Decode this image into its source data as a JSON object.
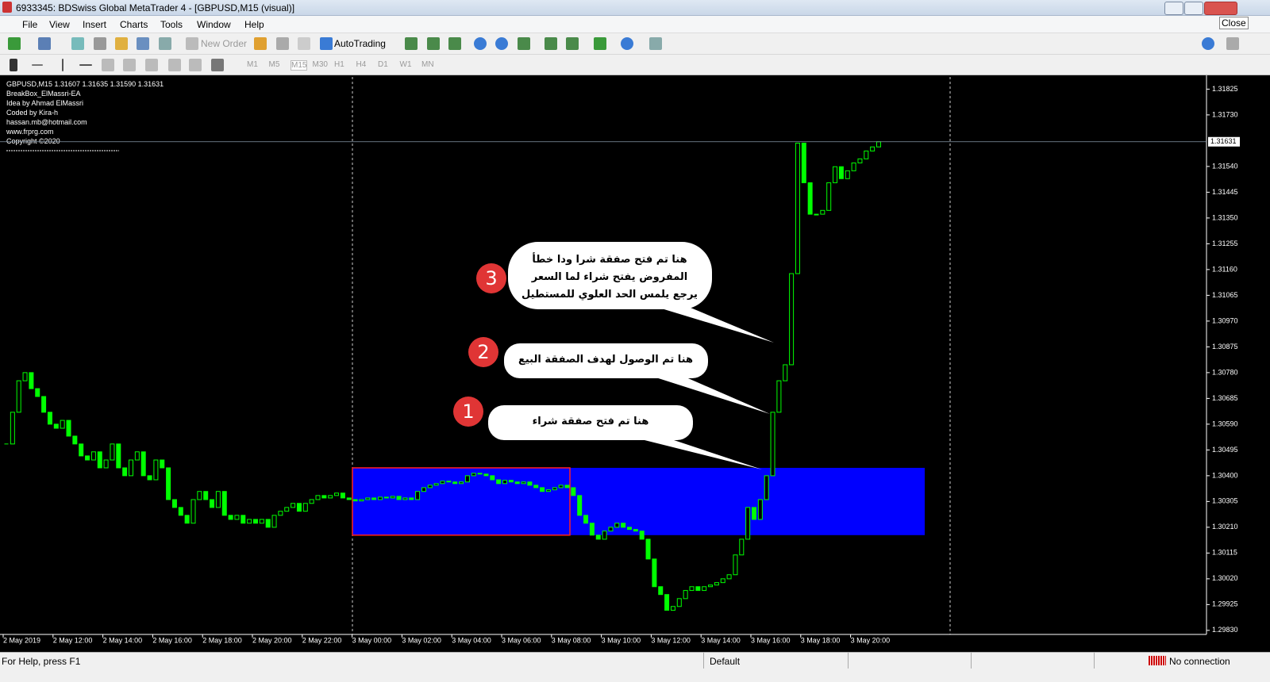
{
  "window": {
    "title": "6933345: BDSwiss Global MetaTrader 4 - [GBPUSD,M15 (visual)]",
    "close_button": "Close"
  },
  "menu": [
    "File",
    "View",
    "Insert",
    "Charts",
    "Tools",
    "Window",
    "Help"
  ],
  "toolbar": {
    "new_order": "New Order",
    "auto_trading": "AutoTrading",
    "timeframes": [
      "M1",
      "M5",
      "M15",
      "M30",
      "H1",
      "H4",
      "D1",
      "W1",
      "MN"
    ]
  },
  "status_bar": {
    "help": "For Help, press F1",
    "profile": "Default",
    "connection": "No connection"
  },
  "chart_data": {
    "type": "candlestick",
    "info_lines": [
      "GBPUSD,M15  1.31607 1.31635 1.31590 1.31631",
      "BreakBox_ElMassri-EA",
      "Idea by Ahmad ElMassri",
      "Coded by Kira-h",
      "hassan.mb@hotmail.com",
      "www.frprg.com",
      "Copyright ©2020"
    ],
    "x_labels": [
      "2 May 2019",
      "2 May 12:00",
      "2 May 14:00",
      "2 May 16:00",
      "2 May 18:00",
      "2 May 20:00",
      "2 May 22:00",
      "3 May 00:00",
      "3 May 02:00",
      "3 May 04:00",
      "3 May 06:00",
      "3 May 08:00",
      "3 May 10:00",
      "3 May 12:00",
      "3 May 14:00",
      "3 May 16:00",
      "3 May 18:00",
      "3 May 20:00"
    ],
    "close": [
      1.30517,
      1.30634,
      1.3075,
      1.3078,
      1.30721,
      1.30692,
      1.30634,
      1.3059,
      1.30575,
      1.30604,
      1.30546,
      1.30517,
      1.30473,
      1.30458,
      1.30488,
      1.30429,
      1.30458,
      1.30517,
      1.30429,
      1.304,
      1.30458,
      1.30488,
      1.304,
      1.30385,
      1.30458,
      1.30429,
      1.30312,
      1.30283,
      1.30254,
      1.30225,
      1.30312,
      1.30342,
      1.30312,
      1.30283,
      1.30342,
      1.30254,
      1.30239,
      1.30254,
      1.30225,
      1.30239,
      1.30225,
      1.30239,
      1.3021,
      1.30254,
      1.30269,
      1.30283,
      1.30298,
      1.30269,
      1.30298,
      1.30312,
      1.30327,
      1.30318,
      1.30327,
      1.30336,
      1.30318,
      1.30312,
      1.30307,
      1.30312,
      1.30318,
      1.30312,
      1.30321,
      1.30318,
      1.30324,
      1.30312,
      1.30318,
      1.30312,
      1.30342,
      1.30356,
      1.30365,
      1.30371,
      1.3038,
      1.30377,
      1.30371,
      1.30377,
      1.304,
      1.30409,
      1.30406,
      1.304,
      1.30385,
      1.30371,
      1.30383,
      1.30377,
      1.30371,
      1.30377,
      1.30365,
      1.30356,
      1.30342,
      1.30348,
      1.30356,
      1.30365,
      1.30356,
      1.30327,
      1.30254,
      1.30225,
      1.30181,
      1.30166,
      1.30196,
      1.3021,
      1.30225,
      1.3021,
      1.30202,
      1.30196,
      1.30166,
      1.30093,
      1.29991,
      1.29962,
      1.29904,
      1.29918,
      1.29947,
      1.29977,
      1.29991,
      1.29977,
      1.29991,
      1.29997,
      1.30006,
      1.3002,
      1.30035,
      1.30108,
      1.30166,
      1.30283,
      1.30239,
      1.30312,
      1.304,
      1.30634,
      1.3075,
      1.30809,
      1.31145,
      1.31626,
      1.3148,
      1.31364,
      1.31364,
      1.31378,
      1.3148,
      1.31539,
      1.31495,
      1.31524,
      1.31553,
      1.31568,
      1.31597,
      1.31612,
      1.31631
    ],
    "up_color": "#00ff00",
    "ylim": [
      1.29815,
      1.3187
    ],
    "yticks": [
      1.31825,
      {
        "value": 1.3173,
        "label": "1.31730"
      },
      {
        "value": 1.3154,
        "label": "1.31540"
      },
      1.31445,
      {
        "value": 1.3135,
        "label": "1.31350"
      },
      1.31255,
      {
        "value": 1.3116,
        "label": "1.31160"
      },
      1.31065,
      {
        "value": 1.3097,
        "label": "1.30970"
      },
      1.30875,
      {
        "value": 1.3078,
        "label": "1.30780"
      },
      1.30685,
      {
        "value": 1.3059,
        "label": "1.30590"
      },
      1.30495,
      {
        "value": 1.304,
        "label": "1.30400"
      },
      1.30305,
      {
        "value": 1.3021,
        "label": "1.30210"
      },
      1.30115,
      {
        "value": 1.3002,
        "label": "1.30020"
      },
      1.29925,
      {
        "value": 1.2983,
        "label": "1.29830"
      }
    ],
    "box": {
      "high": 1.30429,
      "low": 1.30181,
      "color": "#0000ff"
    },
    "annotations": [
      {
        "number": "1",
        "text": [
          "هنا تم فتح صفقة شراء"
        ]
      },
      {
        "number": "2",
        "text": [
          "هنا تم الوصول لهدف الصفقة البيع"
        ]
      },
      {
        "number": "3",
        "text": [
          "هنا تم فتح صفقة شرا ودا خطأ",
          "المفروض يفتح شراء لما السعر",
          "يرجع يلمس الحد العلوي للمستطيل"
        ]
      }
    ]
  }
}
